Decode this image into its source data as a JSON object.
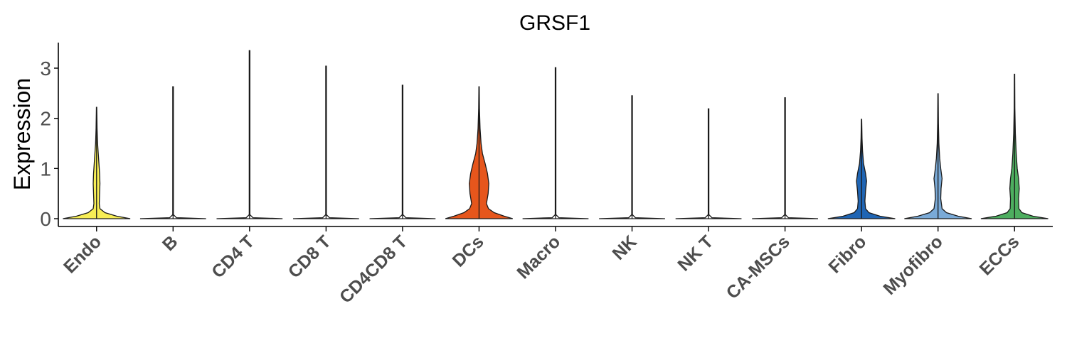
{
  "chart_data": {
    "type": "violin",
    "title": "GRSF1",
    "xlabel": "",
    "ylabel": "Expression",
    "ylim": [
      -0.15,
      3.5
    ],
    "yticks": [
      0,
      1,
      2,
      3
    ],
    "grid": false,
    "legend": "none",
    "categories": [
      "Endo",
      "B",
      "CD4 T",
      "CD8 T",
      "CD4CD8 T",
      "DCs",
      "Macro",
      "NK",
      "NK T",
      "CA-MSCs",
      "Fibro",
      "Myofibro",
      "ECCs"
    ],
    "colors": [
      "#F7EE55",
      "#FFFFFF",
      "#FFFFFF",
      "#FFFFFF",
      "#FFFFFF",
      "#E6561C",
      "#FFFFFF",
      "#FFFFFF",
      "#FFFFFF",
      "#FFFFFF",
      "#1F65B4",
      "#7AAAD7",
      "#4DAE5F"
    ],
    "max_values": [
      2.22,
      2.63,
      3.35,
      3.04,
      2.66,
      2.63,
      3.01,
      2.45,
      2.19,
      2.41,
      1.98,
      2.49,
      2.88
    ],
    "density_profiles": [
      [
        [
          0,
          1.0
        ],
        [
          0.05,
          0.6
        ],
        [
          0.12,
          0.25
        ],
        [
          0.2,
          0.1
        ],
        [
          0.3,
          0.08
        ],
        [
          0.5,
          0.09
        ],
        [
          0.7,
          0.1
        ],
        [
          0.9,
          0.09
        ],
        [
          1.1,
          0.07
        ],
        [
          1.3,
          0.05
        ],
        [
          1.5,
          0.03
        ],
        [
          1.8,
          0.015
        ],
        [
          2.22,
          0.005
        ]
      ],
      [
        [
          0,
          0.98
        ],
        [
          0.02,
          0.1
        ],
        [
          0.08,
          0.01
        ],
        [
          2.63,
          0.01
        ]
      ],
      [
        [
          0,
          0.98
        ],
        [
          0.02,
          0.1
        ],
        [
          0.08,
          0.01
        ],
        [
          3.35,
          0.01
        ]
      ],
      [
        [
          0,
          0.98
        ],
        [
          0.02,
          0.1
        ],
        [
          0.08,
          0.01
        ],
        [
          3.04,
          0.01
        ]
      ],
      [
        [
          0,
          0.98
        ],
        [
          0.02,
          0.1
        ],
        [
          0.08,
          0.01
        ],
        [
          2.66,
          0.01
        ]
      ],
      [
        [
          0,
          1.0
        ],
        [
          0.05,
          0.75
        ],
        [
          0.12,
          0.45
        ],
        [
          0.2,
          0.28
        ],
        [
          0.3,
          0.22
        ],
        [
          0.5,
          0.27
        ],
        [
          0.7,
          0.29
        ],
        [
          0.9,
          0.25
        ],
        [
          1.1,
          0.18
        ],
        [
          1.3,
          0.1
        ],
        [
          1.5,
          0.06
        ],
        [
          1.8,
          0.03
        ],
        [
          2.2,
          0.012
        ],
        [
          2.63,
          0.005
        ]
      ],
      [
        [
          0,
          0.98
        ],
        [
          0.02,
          0.1
        ],
        [
          0.08,
          0.01
        ],
        [
          3.01,
          0.01
        ]
      ],
      [
        [
          0,
          0.98
        ],
        [
          0.02,
          0.1
        ],
        [
          0.08,
          0.01
        ],
        [
          2.45,
          0.01
        ]
      ],
      [
        [
          0,
          0.98
        ],
        [
          0.02,
          0.1
        ],
        [
          0.08,
          0.01
        ],
        [
          2.19,
          0.01
        ]
      ],
      [
        [
          0,
          0.98
        ],
        [
          0.02,
          0.1
        ],
        [
          0.08,
          0.01
        ],
        [
          2.41,
          0.01
        ]
      ],
      [
        [
          0,
          1.0
        ],
        [
          0.05,
          0.55
        ],
        [
          0.12,
          0.22
        ],
        [
          0.2,
          0.12
        ],
        [
          0.35,
          0.1
        ],
        [
          0.55,
          0.12
        ],
        [
          0.75,
          0.15
        ],
        [
          0.9,
          0.12
        ],
        [
          1.1,
          0.06
        ],
        [
          1.35,
          0.03
        ],
        [
          1.6,
          0.015
        ],
        [
          1.98,
          0.005
        ]
      ],
      [
        [
          0,
          1.0
        ],
        [
          0.05,
          0.6
        ],
        [
          0.12,
          0.25
        ],
        [
          0.2,
          0.12
        ],
        [
          0.4,
          0.08
        ],
        [
          0.6,
          0.09
        ],
        [
          0.8,
          0.12
        ],
        [
          1.0,
          0.08
        ],
        [
          1.2,
          0.05
        ],
        [
          1.5,
          0.025
        ],
        [
          1.9,
          0.012
        ],
        [
          2.49,
          0.005
        ]
      ],
      [
        [
          0,
          1.0
        ],
        [
          0.05,
          0.55
        ],
        [
          0.12,
          0.22
        ],
        [
          0.2,
          0.13
        ],
        [
          0.4,
          0.12
        ],
        [
          0.6,
          0.14
        ],
        [
          0.8,
          0.12
        ],
        [
          1.0,
          0.08
        ],
        [
          1.3,
          0.05
        ],
        [
          1.7,
          0.025
        ],
        [
          2.2,
          0.01
        ],
        [
          2.88,
          0.005
        ]
      ]
    ]
  }
}
